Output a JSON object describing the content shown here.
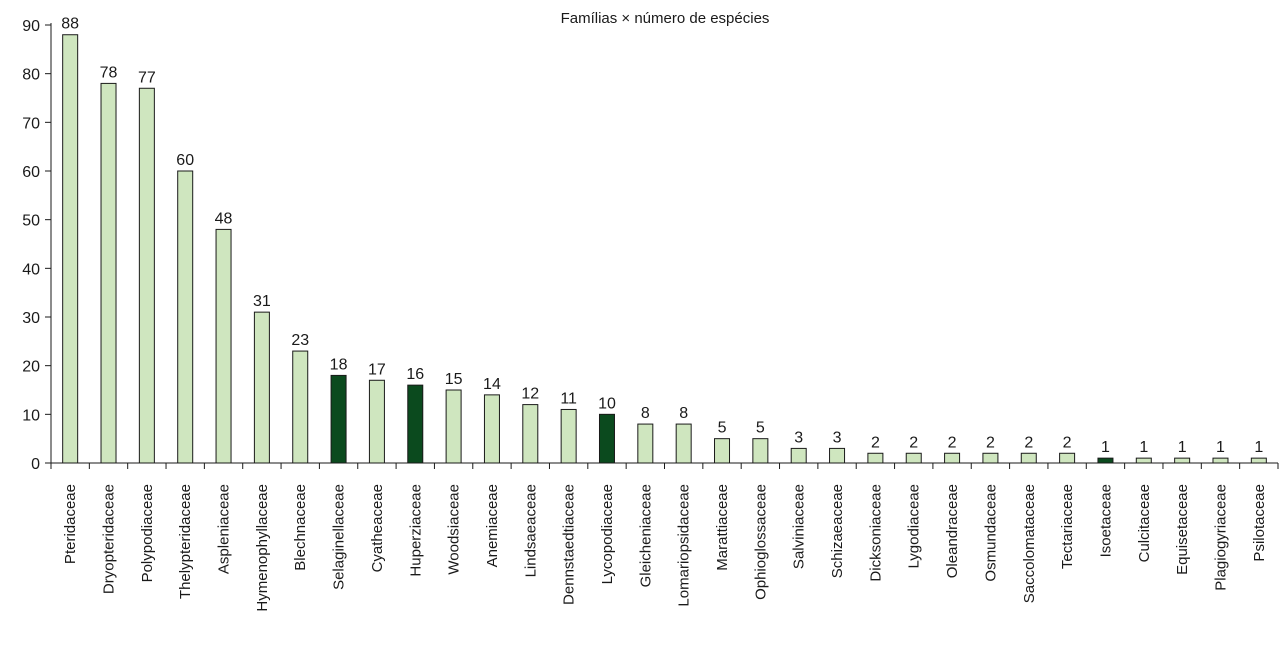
{
  "chart_data": {
    "type": "bar",
    "title": "Famílias × número de espécies",
    "xlabel": "",
    "ylabel": "",
    "ylim": [
      0,
      90
    ],
    "yticks": [
      0,
      10,
      20,
      30,
      40,
      50,
      60,
      70,
      80,
      90
    ],
    "grid": false,
    "legend": "none",
    "categories": [
      "Pteridaceae",
      "Dryopteridaceae",
      "Polypodiaceae",
      "Thelypteridaceae",
      "Aspleniaceae",
      "Hymenophyllaceae",
      "Blechnaceae",
      "Selaginellaceae",
      "Cyatheaceae",
      "Huperziaceae",
      "Woodsiaceae",
      "Anemiaceae",
      "Lindsaeaceae",
      "Dennstaedtiaceae",
      "Lycopodiaceae",
      "Gleicheniaceae",
      "Lomariopsidaceae",
      "Marattiaceae",
      "Ophioglossaceae",
      "Salviniaceae",
      "Schizaeaceae",
      "Dicksoniaceae",
      "Lygodiaceae",
      "Oleandraceae",
      "Osmundaceae",
      "Saccolomataceae",
      "Tectariaceae",
      "Isoetaceae",
      "Culcitaceae",
      "Equisetaceae",
      "Plagiogyriaceae",
      "Psilotaceae"
    ],
    "values": [
      88,
      78,
      77,
      60,
      48,
      31,
      23,
      18,
      17,
      16,
      15,
      14,
      12,
      11,
      10,
      8,
      8,
      5,
      5,
      3,
      3,
      2,
      2,
      2,
      2,
      2,
      2,
      1,
      1,
      1,
      1,
      1
    ],
    "highlighted": [
      "Selaginellaceae",
      "Huperziaceae",
      "Lycopodiaceae",
      "Isoetaceae"
    ],
    "colors": {
      "bar_fill": "#cfe6bf",
      "highlight_fill": "#0b4a1e",
      "bar_stroke": "#1a1a1a",
      "axis": "#1a1a1a"
    }
  }
}
